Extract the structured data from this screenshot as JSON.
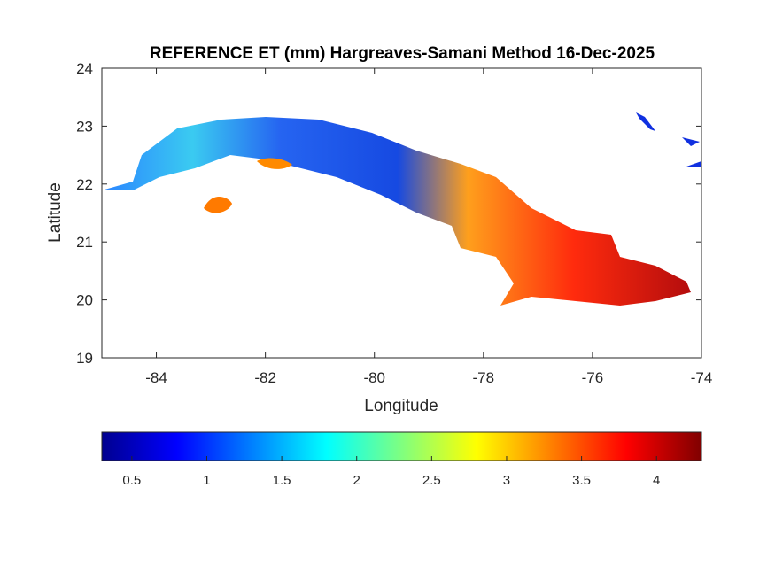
{
  "title": "REFERENCE ET (mm) Hargreaves-Samani Method  16-Dec-2025",
  "chart_data": {
    "type": "heatmap",
    "title": "REFERENCE ET (mm) Hargreaves-Samani Method  16-Dec-2025",
    "xlabel": "Longitude",
    "ylabel": "Latitude",
    "xlim": [
      -85,
      -74
    ],
    "ylim": [
      19,
      24
    ],
    "xticks": [
      "-84",
      "-82",
      "-80",
      "-78",
      "-76",
      "-74"
    ],
    "yticks": [
      "19",
      "20",
      "21",
      "22",
      "23",
      "24"
    ],
    "grid": false,
    "colormap": "jet",
    "colorbar": {
      "placement": "bottom",
      "range": [
        0.3,
        4.3
      ],
      "ticks": [
        "0.5",
        "1",
        "1.5",
        "2",
        "2.5",
        "3",
        "3.5",
        "4"
      ]
    }
  }
}
